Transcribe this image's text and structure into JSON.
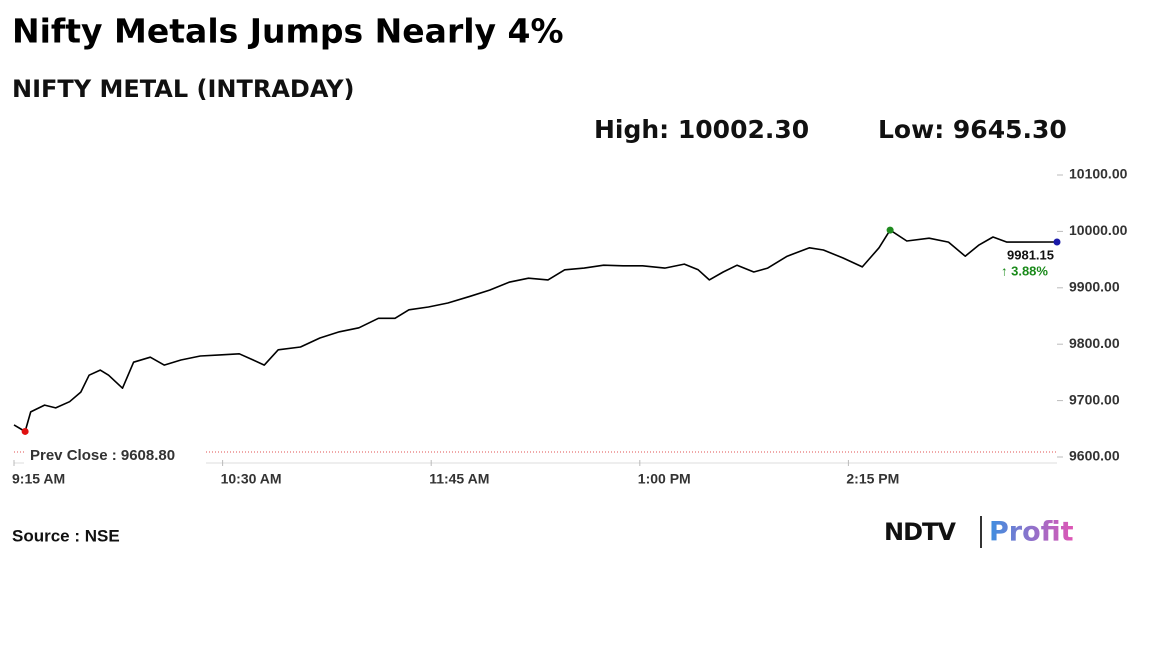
{
  "chart_data": {
    "type": "line",
    "title": "Nifty Metals Jumps Nearly 4%",
    "subtitle": "NIFTY METAL (INTRADAY)",
    "x": [
      555,
      559,
      561,
      566,
      570,
      575,
      579,
      582,
      586,
      589,
      594,
      598,
      604,
      609,
      615,
      622,
      629,
      636,
      641,
      645,
      650,
      658,
      665,
      672,
      679,
      686,
      692,
      697,
      704,
      711,
      719,
      726,
      733,
      740,
      747,
      753,
      760,
      767,
      774,
      781,
      789,
      796,
      801,
      805,
      810,
      815,
      821,
      826,
      833,
      841,
      846,
      853,
      860,
      866,
      870,
      876,
      884,
      891,
      897,
      902,
      907,
      912,
      930
    ],
    "series": [
      {
        "name": "NIFTY METAL",
        "color": "#000000",
        "values": [
          9657,
          9645.3,
          9680,
          9692,
          9687,
          9698,
          9715,
          9745,
          9754,
          9745,
          9722,
          9768,
          9777,
          9763,
          9772,
          9779,
          9781,
          9783,
          9772,
          9763,
          9790,
          9795,
          9811,
          9822,
          9829,
          9846,
          9846,
          9861,
          9866,
          9873,
          9885,
          9896,
          9910,
          9917,
          9914,
          9932,
          9935,
          9940,
          9939,
          9939,
          9935,
          9942,
          9932,
          9914,
          9928,
          9940,
          9928,
          9935,
          9956,
          9971,
          9967,
          9953,
          9937,
          9971,
          10002.3,
          9983,
          9988,
          9981,
          9956,
          9976,
          9990,
          9981,
          9981.15
        ]
      }
    ],
    "xlim": [
      555,
      930
    ],
    "xticks": [
      {
        "value": 555,
        "label": "9:15 AM"
      },
      {
        "value": 630,
        "label": "10:30 AM"
      },
      {
        "value": 705,
        "label": "11:45 AM"
      },
      {
        "value": 780,
        "label": "1:00 PM"
      },
      {
        "value": 855,
        "label": "2:15 PM"
      }
    ],
    "ylim": [
      9600,
      10100
    ],
    "yticks": [
      {
        "value": 9600,
        "label": "9600.00"
      },
      {
        "value": 9700,
        "label": "9700.00"
      },
      {
        "value": 9800,
        "label": "9800.00"
      },
      {
        "value": 9900,
        "label": "9900.00"
      },
      {
        "value": 10000,
        "label": "10000.00"
      },
      {
        "value": 10100,
        "label": "10100.00"
      }
    ],
    "high": {
      "label": "High: 10002.30",
      "value": 10002.3,
      "x": 870,
      "color": "#1e8a1e"
    },
    "low": {
      "label": "Low: 9645.30",
      "value": 9645.3,
      "x": 559,
      "color": "#e01010"
    },
    "last": {
      "label": "9981.15",
      "change_label": "↑ 3.88%",
      "value": 9981.15,
      "x": 930,
      "color": "#1a1aa8",
      "change_color": "#1a8a1a"
    },
    "prev_close": {
      "label": "Prev Close : 9608.80",
      "value": 9608.8,
      "color": "#e05050"
    },
    "source": "Source : NSE",
    "logo": {
      "brand": "NDTV",
      "product": "Profit"
    }
  }
}
